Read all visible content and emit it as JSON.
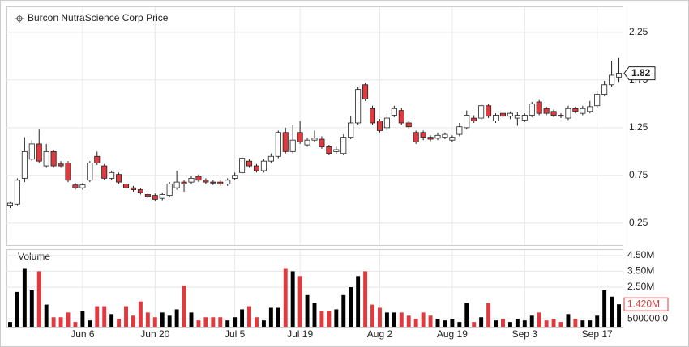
{
  "chart_data": [
    {
      "type": "candlestick",
      "title": "Burcon NutraScience Corp Price",
      "categories": [
        null,
        null,
        null,
        null,
        null,
        null,
        null,
        null,
        null,
        null,
        "Jun 6",
        null,
        null,
        null,
        null,
        null,
        null,
        null,
        null,
        null,
        "Jun 20",
        null,
        null,
        null,
        null,
        null,
        null,
        null,
        null,
        null,
        null,
        "Jul 5",
        null,
        null,
        null,
        null,
        null,
        null,
        null,
        null,
        "Jul 19",
        null,
        null,
        null,
        null,
        null,
        null,
        null,
        null,
        null,
        null,
        "Aug 2",
        null,
        null,
        null,
        null,
        null,
        null,
        null,
        null,
        null,
        "Aug 19",
        null,
        null,
        null,
        null,
        null,
        null,
        null,
        null,
        null,
        "Sep 3",
        null,
        null,
        null,
        null,
        null,
        null,
        null,
        null,
        null,
        "Sep 17",
        null,
        null,
        null
      ],
      "open": [
        0.43,
        0.45,
        0.72,
        0.92,
        1.08,
        0.85,
        1.0,
        0.87,
        0.88,
        0.65,
        0.62,
        0.7,
        0.95,
        0.85,
        0.72,
        0.76,
        0.66,
        0.62,
        0.6,
        0.55,
        0.54,
        0.51,
        0.54,
        0.62,
        0.68,
        0.68,
        0.74,
        0.7,
        0.68,
        0.68,
        0.66,
        0.72,
        0.78,
        0.9,
        0.85,
        0.8,
        0.9,
        0.95,
        1.2,
        1.0,
        1.2,
        1.07,
        1.12,
        1.13,
        1.05,
        1.0,
        0.98,
        1.15,
        1.3,
        1.7,
        1.45,
        1.32,
        1.25,
        1.38,
        1.43,
        1.3,
        1.2,
        1.2,
        1.15,
        1.14,
        1.15,
        1.12,
        1.18,
        1.25,
        1.35,
        1.35,
        1.48,
        1.32,
        1.4,
        1.37,
        1.35,
        1.33,
        1.38,
        1.52,
        1.45,
        1.42,
        1.38,
        1.35,
        1.45,
        1.4,
        1.42,
        1.48,
        1.6,
        1.7,
        1.78
      ],
      "high": [
        0.47,
        0.72,
        1.15,
        1.12,
        1.23,
        1.08,
        1.02,
        0.9,
        0.9,
        0.67,
        0.67,
        0.9,
        1.0,
        0.87,
        0.8,
        0.78,
        0.68,
        0.64,
        0.62,
        0.57,
        0.56,
        0.57,
        0.68,
        0.8,
        0.7,
        0.74,
        0.76,
        0.72,
        0.7,
        0.7,
        0.72,
        0.78,
        0.95,
        0.92,
        0.87,
        0.92,
        0.98,
        1.22,
        1.25,
        1.28,
        1.32,
        1.14,
        1.22,
        1.16,
        1.07,
        1.05,
        1.18,
        1.37,
        1.68,
        1.72,
        1.48,
        1.34,
        1.4,
        1.48,
        1.46,
        1.32,
        1.22,
        1.22,
        1.17,
        1.2,
        1.2,
        1.17,
        1.3,
        1.43,
        1.38,
        1.5,
        1.5,
        1.4,
        1.42,
        1.42,
        1.41,
        1.4,
        1.52,
        1.54,
        1.47,
        1.44,
        1.4,
        1.48,
        1.47,
        1.48,
        1.53,
        1.63,
        1.74,
        1.95,
        1.98
      ],
      "low": [
        0.41,
        0.43,
        0.68,
        0.9,
        0.88,
        0.83,
        0.83,
        0.83,
        0.68,
        0.6,
        0.6,
        0.68,
        0.86,
        0.7,
        0.7,
        0.66,
        0.6,
        0.58,
        0.55,
        0.51,
        0.48,
        0.49,
        0.52,
        0.6,
        0.58,
        0.66,
        0.68,
        0.66,
        0.65,
        0.64,
        0.64,
        0.7,
        0.76,
        0.83,
        0.78,
        0.78,
        0.88,
        0.93,
        0.98,
        0.98,
        1.08,
        1.05,
        1.1,
        1.03,
        0.96,
        0.97,
        0.96,
        1.13,
        1.28,
        1.53,
        1.28,
        1.2,
        1.22,
        1.36,
        1.28,
        1.24,
        1.08,
        1.12,
        1.11,
        1.12,
        1.13,
        1.1,
        1.16,
        1.23,
        1.3,
        1.33,
        1.35,
        1.3,
        1.35,
        1.34,
        1.27,
        1.31,
        1.36,
        1.38,
        1.38,
        1.36,
        1.35,
        1.33,
        1.4,
        1.38,
        1.4,
        1.46,
        1.58,
        1.68,
        1.73
      ],
      "close": [
        0.46,
        0.7,
        1.0,
        1.08,
        0.9,
        1.0,
        0.85,
        0.85,
        0.7,
        0.62,
        0.65,
        0.88,
        0.88,
        0.72,
        0.78,
        0.68,
        0.62,
        0.6,
        0.57,
        0.53,
        0.5,
        0.55,
        0.66,
        0.68,
        0.66,
        0.72,
        0.7,
        0.68,
        0.67,
        0.66,
        0.7,
        0.75,
        0.93,
        0.85,
        0.8,
        0.9,
        0.95,
        1.2,
        1.0,
        1.12,
        1.1,
        1.12,
        1.14,
        1.05,
        0.98,
        1.02,
        1.15,
        1.3,
        1.65,
        1.55,
        1.3,
        1.22,
        1.35,
        1.45,
        1.3,
        1.26,
        1.1,
        1.15,
        1.13,
        1.17,
        1.18,
        1.15,
        1.26,
        1.38,
        1.32,
        1.48,
        1.37,
        1.38,
        1.37,
        1.4,
        1.38,
        1.38,
        1.5,
        1.4,
        1.4,
        1.38,
        1.37,
        1.45,
        1.42,
        1.45,
        1.47,
        1.6,
        1.7,
        1.8,
        1.82
      ],
      "up_color": "#ffffff",
      "down_color": "#e03a3e",
      "ylim": [
        0.02,
        2.52
      ],
      "yticks": [
        0.25,
        0.75,
        1.25,
        1.75,
        2.25
      ],
      "grid": true
    },
    {
      "type": "bar",
      "title": "Volume",
      "values": [
        300000,
        2200000,
        3700000,
        2300000,
        3500000,
        1400000,
        600000,
        600000,
        900000,
        300000,
        1000000,
        400000,
        1300000,
        1300000,
        800000,
        500000,
        1300000,
        700000,
        1600000,
        900000,
        600000,
        900000,
        700000,
        1100000,
        2600000,
        900000,
        400000,
        600000,
        600000,
        600000,
        400000,
        600000,
        1100000,
        1300000,
        600000,
        400000,
        1200000,
        1200000,
        3700000,
        3500000,
        3200000,
        2000000,
        1500000,
        1000000,
        1000000,
        1100000,
        2000000,
        2500000,
        3200000,
        3500000,
        1400000,
        1200000,
        900000,
        900000,
        900000,
        700000,
        500000,
        900000,
        700000,
        500000,
        400000,
        500000,
        300000,
        1500000,
        300000,
        600000,
        1500000,
        400000,
        500000,
        300000,
        500000,
        400000,
        700000,
        900000,
        400000,
        500000,
        300000,
        800000,
        500000,
        400000,
        400000,
        700000,
        2300000,
        1900000,
        1420000
      ],
      "value_labels": [
        null,
        null,
        null,
        null,
        null,
        null,
        null,
        null,
        null,
        null,
        null,
        null,
        null,
        null,
        null,
        null,
        null,
        null,
        null,
        null,
        null,
        null,
        null,
        null,
        null,
        null,
        null,
        null,
        null,
        null,
        null,
        null,
        null,
        null,
        null,
        null,
        null,
        null,
        null,
        null,
        null,
        null,
        null,
        null,
        null,
        null,
        null,
        null,
        null,
        null,
        null,
        null,
        null,
        null,
        null,
        null,
        null,
        null,
        null,
        null,
        null,
        null,
        null,
        null,
        null,
        null,
        null,
        null,
        null,
        null,
        null,
        null,
        null,
        null,
        null,
        null,
        null,
        null,
        null,
        null,
        null,
        null,
        null,
        null,
        "1.420M"
      ],
      "up_color": "#000000",
      "down_color": "#e03a3e",
      "ylim": [
        0,
        4900000
      ],
      "yticks": [
        {
          "value": 500000,
          "label": "500000.0"
        },
        {
          "value": 2500000,
          "label": "2.50M"
        },
        {
          "value": 3500000,
          "label": "3.50M"
        },
        {
          "value": 4500000,
          "label": "4.50M"
        }
      ]
    }
  ]
}
